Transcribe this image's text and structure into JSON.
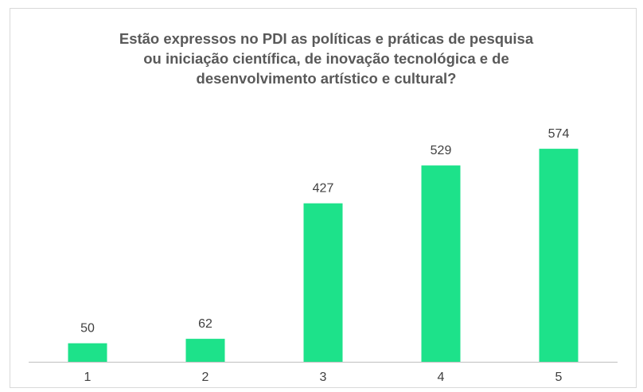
{
  "chart_data": {
    "type": "bar",
    "title_lines": [
      "Estão expressos no PDI as políticas e práticas de pesquisa",
      "ou iniciação científica, de inovação tecnológica e de",
      "desenvolvimento artístico e cultural?"
    ],
    "categories": [
      "1",
      "2",
      "3",
      "4",
      "5"
    ],
    "values": [
      50,
      62,
      427,
      529,
      574
    ],
    "value_labels": [
      "50",
      "62",
      "427",
      "529",
      "574"
    ],
    "xlabel": "",
    "ylabel": "",
    "ylim": [
      0,
      600
    ],
    "grid": false,
    "legend": "none",
    "bar_color": "#1de28a",
    "axis_color": "#bfbfbf",
    "text_color": "#404040"
  }
}
